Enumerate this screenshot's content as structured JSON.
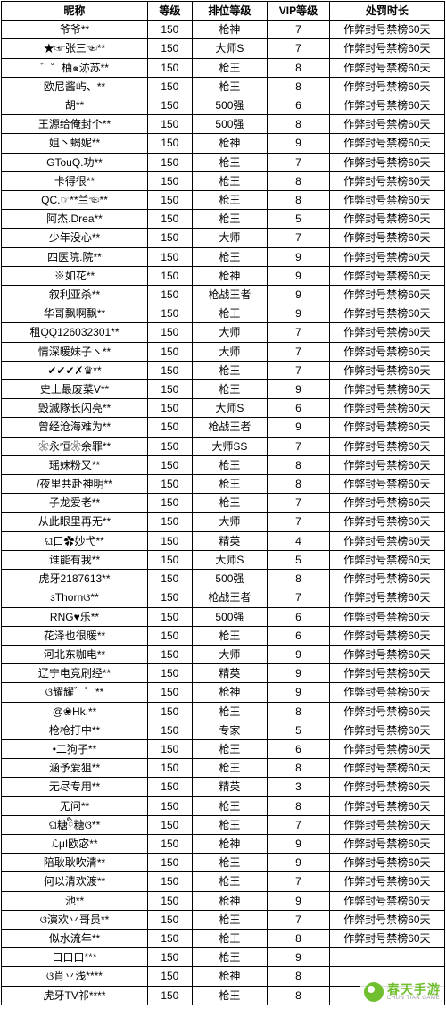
{
  "table": {
    "columns": [
      "昵称",
      "等级",
      "排位等级",
      "VIP等级",
      "处罚时长"
    ],
    "col_classes": [
      "col-nick",
      "col-lvl",
      "col-rank",
      "col-vip",
      "col-pen"
    ],
    "rows": [
      [
        "爷爷**",
        "150",
        "枪神",
        "7",
        "作弊封号禁榜60天"
      ],
      [
        "★☞张三☜**",
        "150",
        "大师S",
        "7",
        "作弊封号禁榜60天"
      ],
      [
        "゛゜柚๑洂苏**",
        "150",
        "枪王",
        "8",
        "作弊封号禁榜60天"
      ],
      [
        "欧尼酱屿、**",
        "150",
        "枪王",
        "8",
        "作弊封号禁榜60天"
      ],
      [
        "胡**",
        "150",
        "500强",
        "6",
        "作弊封号禁榜60天"
      ],
      [
        "王源给俺封个**",
        "150",
        "500强",
        "8",
        "作弊封号禁榜60天"
      ],
      [
        "姐丶蝎妮**",
        "150",
        "枪神",
        "9",
        "作弊封号禁榜60天"
      ],
      [
        "GTouQ.功**",
        "150",
        "枪王",
        "7",
        "作弊封号禁榜60天"
      ],
      [
        "卡得很**",
        "150",
        "枪王",
        "8",
        "作弊封号禁榜60天"
      ],
      [
        "QC.☞**兰☜**",
        "150",
        "枪王",
        "8",
        "作弊封号禁榜60天"
      ],
      [
        "阿杰.Drea**",
        "150",
        "枪王",
        "5",
        "作弊封号禁榜60天"
      ],
      [
        "少年没心**",
        "150",
        "大师",
        "7",
        "作弊封号禁榜60天"
      ],
      [
        "四医院.院**",
        "150",
        "枪王",
        "9",
        "作弊封号禁榜60天"
      ],
      [
        "※如花**",
        "150",
        "枪神",
        "9",
        "作弊封号禁榜60天"
      ],
      [
        "叙利亚杀**",
        "150",
        "枪战王者",
        "9",
        "作弊封号禁榜60天"
      ],
      [
        "华哥飘啊飘**",
        "150",
        "枪王",
        "9",
        "作弊封号禁榜60天"
      ],
      [
        "租QQ126032301**",
        "150",
        "大师",
        "7",
        "作弊封号禁榜60天"
      ],
      [
        "情深暖妹子ヽ**",
        "150",
        "大师",
        "7",
        "作弊封号禁榜60天"
      ],
      [
        "✔✔✔✗♛**",
        "150",
        "枪王",
        "7",
        "作弊封号禁榜60天"
      ],
      [
        "史上最废菜V**",
        "150",
        "枪王",
        "9",
        "作弊封号禁榜60天"
      ],
      [
        "毁滅隊长闪亮**",
        "150",
        "大师S",
        "6",
        "作弊封号禁榜60天"
      ],
      [
        "曾经沧海难为**",
        "150",
        "枪战王者",
        "9",
        "作弊封号禁榜60天"
      ],
      [
        "❀永恒❀余罪**",
        "150",
        "大师SS",
        "7",
        "作弊封号禁榜60天"
      ],
      [
        "瑶妹粉又**",
        "150",
        "枪王",
        "8",
        "作弊封号禁榜60天"
      ],
      [
        "/夜里共赴神明**",
        "150",
        "枪王",
        "8",
        "作弊封号禁榜60天"
      ],
      [
        "子龙爱老**",
        "150",
        "枪王",
        "7",
        "作弊封号禁榜60天"
      ],
      [
        "从此眼里再无**",
        "150",
        "大师",
        "7",
        "作弊封号禁榜60天"
      ],
      [
        "ଘ口✿妙弋**",
        "150",
        "精英",
        "4",
        "作弊封号禁榜60天"
      ],
      [
        "谁能有我**",
        "150",
        "大师S",
        "5",
        "作弊封号禁榜60天"
      ],
      [
        "虎牙2187613**",
        "150",
        "500强",
        "8",
        "作弊封号禁榜60天"
      ],
      [
        "ɜThornଓ**",
        "150",
        "枪战王者",
        "7",
        "作弊封号禁榜60天"
      ],
      [
        "RNG♥乐**",
        "150",
        "500强",
        "6",
        "作弊封号禁榜60天"
      ],
      [
        "花泽也很暖**",
        "150",
        "枪王",
        "6",
        "作弊封号禁榜60天"
      ],
      [
        "河北东咖电**",
        "150",
        "大师",
        "9",
        "作弊封号禁榜60天"
      ],
      [
        "辽宁电竞刷经**",
        "150",
        "精英",
        "9",
        "作弊封号禁榜60天"
      ],
      [
        "ଓ耀耀゛゜**",
        "150",
        "枪神",
        "9",
        "作弊封号禁榜60天"
      ],
      [
        "@❀Hk.**",
        "150",
        "枪王",
        "8",
        "作弊封号禁榜60天"
      ],
      [
        "枪枪打中**",
        "150",
        "专家",
        "5",
        "作弊封号禁榜60天"
      ],
      [
        "•二狗子**",
        "150",
        "枪王",
        "6",
        "作弊封号禁榜60天"
      ],
      [
        "涵予爱狙**",
        "150",
        "枪王",
        "8",
        "作弊封号禁榜60天"
      ],
      [
        "无尽专用**",
        "150",
        "精英",
        "3",
        "作弊封号禁榜60天"
      ],
      [
        "无问**",
        "150",
        "枪王",
        "8",
        "作弊封号禁榜60天"
      ],
      [
        "ଘ糖ི糖ଓ**",
        "150",
        "枪王",
        "7",
        "作弊封号禁榜60天"
      ],
      [
        "ℒμΙ欧宓**",
        "150",
        "枪神",
        "9",
        "作弊封号禁榜60天"
      ],
      [
        "陪耿耿吹清**",
        "150",
        "枪王",
        "9",
        "作弊封号禁榜60天"
      ],
      [
        "何以清欢渡**",
        "150",
        "枪王",
        "7",
        "作弊封号禁榜60天"
      ],
      [
        "池**",
        "150",
        "枪神",
        "9",
        "作弊封号禁榜60天"
      ],
      [
        "ଓ演欢丷哥员**",
        "150",
        "枪王",
        "7",
        "作弊封号禁榜60天"
      ],
      [
        "似水流年**",
        "150",
        "枪王",
        "8",
        "作弊封号禁榜60天"
      ],
      [
        "口口口***",
        "150",
        "枪王",
        "9",
        ""
      ],
      [
        "ଓ肖丷浅****",
        "150",
        "枪神",
        "8",
        ""
      ],
      [
        "虎牙TV祁****",
        "150",
        "枪王",
        "8",
        ""
      ]
    ]
  },
  "watermark": {
    "main": "春天手游",
    "sub": "CHUN TIAN GAME",
    "icon_bg": "#6fbf2f",
    "text_color": "#6fbf2f"
  }
}
